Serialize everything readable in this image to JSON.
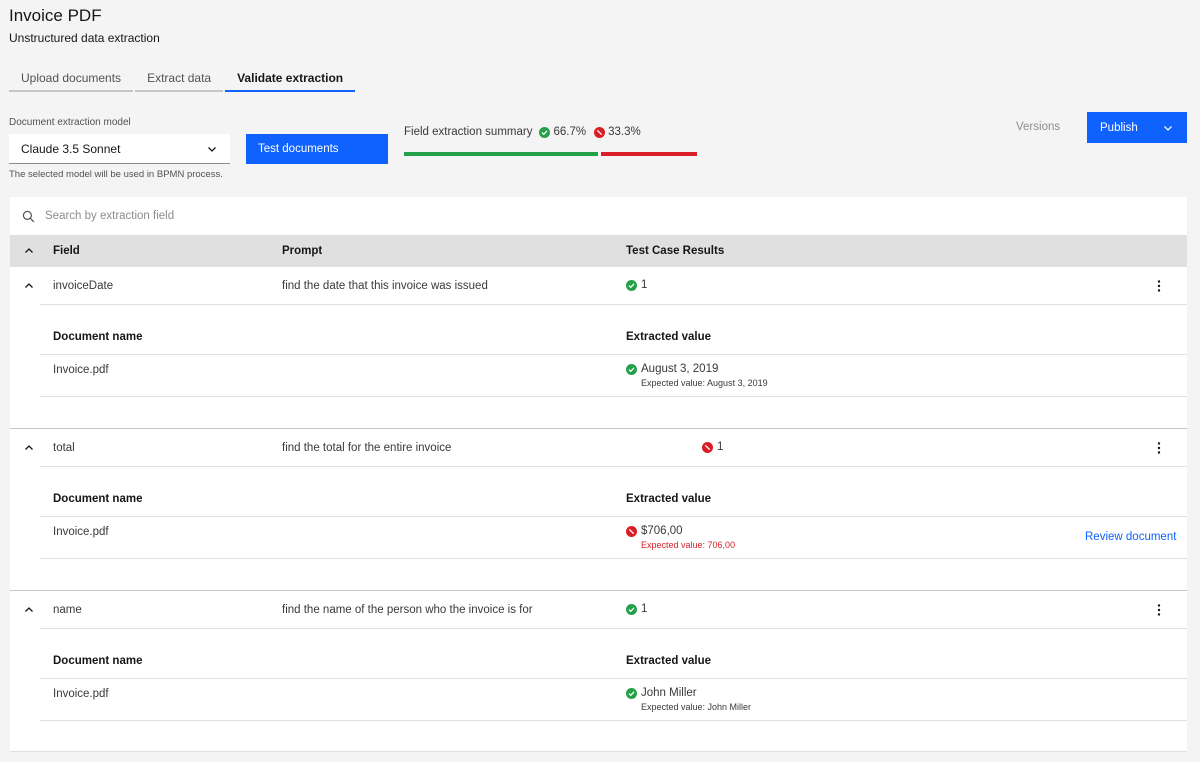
{
  "header": {
    "title": "Invoice PDF",
    "subtitle": "Unstructured data extraction"
  },
  "tabs": [
    {
      "label": "Upload documents",
      "active": false
    },
    {
      "label": "Extract data",
      "active": false
    },
    {
      "label": "Validate extraction",
      "active": true
    }
  ],
  "model": {
    "label": "Document extraction model",
    "selected": "Claude 3.5 Sonnet",
    "helper": "The selected model will be used in BPMN process."
  },
  "actions": {
    "test_documents": "Test documents",
    "versions": "Versions",
    "publish": "Publish"
  },
  "summary": {
    "label": "Field extraction summary",
    "success_pct": "66.7%",
    "fail_pct": "33.3%",
    "success_fraction": 0.667,
    "fail_fraction": 0.333
  },
  "search": {
    "placeholder": "Search by extraction field"
  },
  "table": {
    "headers": {
      "field": "Field",
      "prompt": "Prompt",
      "results": "Test Case Results"
    },
    "sub_headers": {
      "document": "Document name",
      "value": "Extracted value"
    },
    "rows": [
      {
        "field": "invoiceDate",
        "prompt": "find the date that this invoice was issued",
        "status": "success",
        "count": "1",
        "document": "Invoice.pdf",
        "value": "August 3, 2019",
        "expected": "Expected value: August 3, 2019"
      },
      {
        "field": "total",
        "prompt": "find the total for the entire invoice",
        "status": "error",
        "count": "1",
        "document": "Invoice.pdf",
        "value": "$706,00",
        "expected": "Expected value: 706,00",
        "action": "Review document"
      },
      {
        "field": "name",
        "prompt": "find the name of the person who the invoice is for",
        "status": "success",
        "count": "1",
        "document": "Invoice.pdf",
        "value": "John Miller",
        "expected": "Expected value: John Miller"
      }
    ]
  },
  "colors": {
    "primary": "#0f62fe",
    "success": "#24a148",
    "error": "#da1e28"
  },
  "icons": {
    "success": "checkmark-filled-icon",
    "error": "misuse-icon",
    "search": "search-icon",
    "chevron": "chevron-icon",
    "overflow": "overflow-menu-icon"
  }
}
